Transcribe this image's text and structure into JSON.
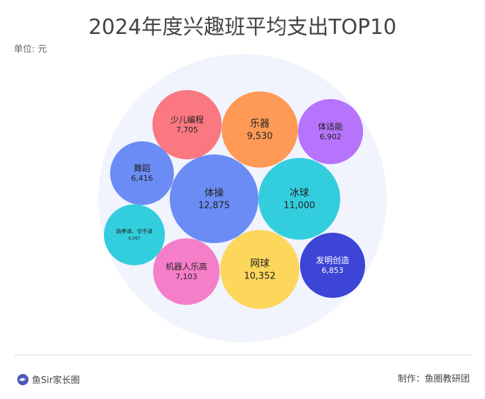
{
  "title": "2024年度兴趣班平均支出TOP10",
  "unit_label": "单位: 元",
  "brand": {
    "name": "鱼Sir家长圈",
    "logo_icon": "fish-logo-icon"
  },
  "credit": "制作：鱼圈教研团",
  "chart_data": {
    "type": "bubble",
    "title": "2024年度兴趣班平均支出TOP10",
    "unit": "元",
    "items": [
      {
        "label": "体操",
        "value": 12875,
        "value_text": "12,875",
        "color": "#6c8cf5"
      },
      {
        "label": "冰球",
        "value": 11000,
        "value_text": "11,000",
        "color": "#33cede"
      },
      {
        "label": "网球",
        "value": 10352,
        "value_text": "10,352",
        "color": "#fdd65c"
      },
      {
        "label": "乐器",
        "value": 9530,
        "value_text": "9,530",
        "color": "#ff9a56"
      },
      {
        "label": "少儿编程",
        "value": 7705,
        "value_text": "7,705",
        "color": "#fa7880"
      },
      {
        "label": "机器人乐高",
        "value": 7103,
        "value_text": "7,103",
        "color": "#f57ec9"
      },
      {
        "label": "体适能",
        "value": 6902,
        "value_text": "6,902",
        "color": "#b673fc"
      },
      {
        "label": "发明创造",
        "value": 6853,
        "value_text": "6,853",
        "color": "#3c45d6"
      },
      {
        "label": "舞蹈",
        "value": 6416,
        "value_text": "6,416",
        "color": "#6c8cf5"
      },
      {
        "label": "跆拳道、空手道",
        "value": 6097,
        "value_text": "6,097",
        "color": "#33cede"
      }
    ]
  }
}
